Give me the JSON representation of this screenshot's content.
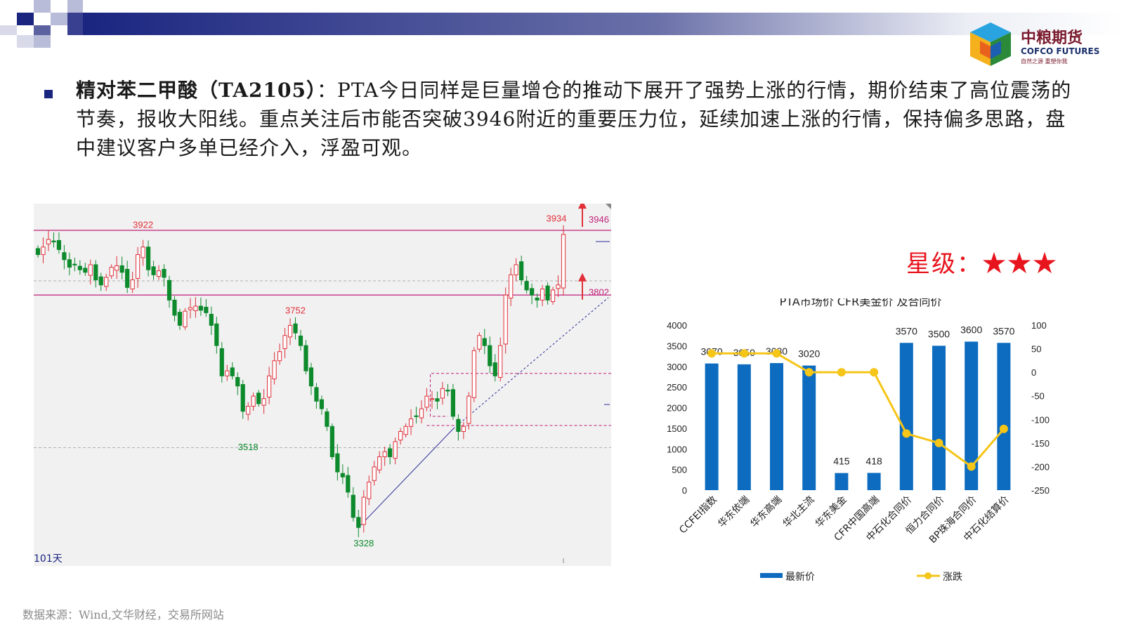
{
  "slide": {
    "logo": {
      "name_cn": "中粮期货",
      "name_en": "COFCO FUTURES",
      "slogan": "自然之源 重塑你我"
    },
    "paragraph": {
      "title": "精对苯二甲酸（TA2105）",
      "colon": "：",
      "body": "PTA今日同样是巨量增仓的推动下展开了强势上涨的行情，期价结束了高位震荡的节奏，报收大阳线。重点关注后市能否突破3946附近的重要压力位，延续加速上涨的行情，保持偏多思路，盘中建议客户多单已经介入，浮盈可观。"
    },
    "rating": "星级：★★★",
    "source": "数据来源：Wind,文华财经，交易所网站"
  },
  "colors": {
    "bullish": "#e0303a",
    "bearish": "#0d8a2c",
    "bar": "#0d6cbf",
    "line": "#f5c518",
    "magenta": "#c0207a",
    "title_blue": "#1a2580"
  },
  "chart_data": [
    {
      "type": "candlestick",
      "period_label": "101天",
      "ylim": [
        3300,
        3960
      ],
      "closes": [
        3880,
        3895,
        3910,
        3905,
        3890,
        3870,
        3855,
        3860,
        3850,
        3845,
        3860,
        3830,
        3820,
        3835,
        3855,
        3858,
        3845,
        3815,
        3830,
        3880,
        3895,
        3850,
        3840,
        3848,
        3835,
        3790,
        3760,
        3740,
        3768,
        3775,
        3778,
        3770,
        3765,
        3740,
        3700,
        3640,
        3650,
        3640,
        3620,
        3570,
        3580,
        3600,
        3585,
        3595,
        3640,
        3670,
        3688,
        3720,
        3740,
        3725,
        3700,
        3650,
        3620,
        3590,
        3575,
        3540,
        3480,
        3450,
        3440,
        3410,
        3360,
        3340,
        3400,
        3430,
        3460,
        3480,
        3490,
        3480,
        3510,
        3530,
        3540,
        3555,
        3560,
        3575,
        3600,
        3595,
        3590,
        3615,
        3610,
        3560,
        3530,
        3540,
        3600,
        3690,
        3720,
        3700,
        3660,
        3640,
        3700,
        3800,
        3840,
        3860,
        3830,
        3810,
        3800,
        3790,
        3812,
        3790,
        3810,
        3820,
        3920
      ],
      "annotations": [
        {
          "label": "3922",
          "value": 3922
        },
        {
          "label": "3752",
          "value": 3752
        },
        {
          "label": "3518",
          "value": 3518
        },
        {
          "label": "3328",
          "value": 3328
        },
        {
          "label": "3934",
          "value": 3934
        }
      ],
      "levels": [
        {
          "label": "3946",
          "value": 3946
        },
        {
          "label": "3802",
          "value": 3802
        }
      ]
    },
    {
      "type": "bar",
      "title": "PTA市场价 CFR美金价 及合同价",
      "categories": [
        "CCFEI指数",
        "华东依端",
        "华东高端",
        "华北主流",
        "华东美金",
        "CFR中国高端",
        "中石化合同价",
        "恒力合同价",
        "BP珠海合同价",
        "中石化结算价"
      ],
      "series": [
        {
          "name": "最新价",
          "type": "bar",
          "axis": "left",
          "values": [
            3070,
            3050,
            3080,
            3020,
            415,
            418,
            3570,
            3500,
            3600,
            3570
          ],
          "labels": [
            "3070",
            "3050",
            "3080",
            "3020",
            "415",
            "418",
            "3570",
            "3500",
            "3600",
            "3570"
          ]
        },
        {
          "name": "涨跌",
          "type": "line",
          "axis": "right",
          "values": [
            40,
            40,
            40,
            0,
            0,
            0,
            -130,
            -150,
            -200,
            -120
          ]
        }
      ],
      "y_left": {
        "min": 0,
        "max": 4000,
        "ticks": [
          "0",
          "500",
          "1000",
          "1500",
          "2000",
          "2500",
          "3000",
          "3500",
          "4000"
        ]
      },
      "y_right": {
        "min": -250,
        "max": 100,
        "ticks": [
          "100",
          "50",
          "0",
          "-50",
          "-100",
          "-150",
          "-200",
          "-250"
        ]
      },
      "legend": "bottom"
    }
  ]
}
